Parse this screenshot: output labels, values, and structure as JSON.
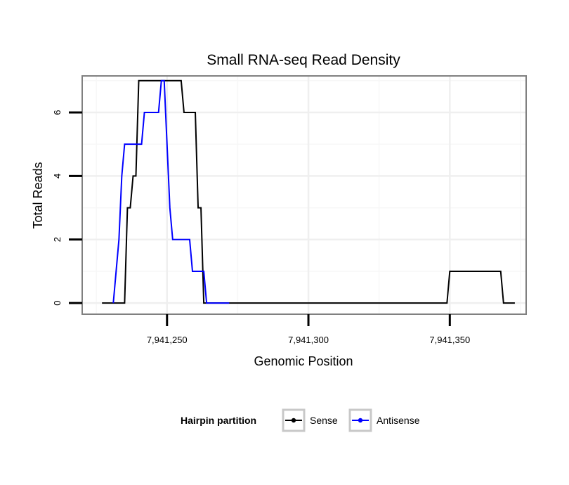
{
  "chart_data": {
    "type": "line",
    "title": "Small RNA-seq Read Density",
    "xlabel": "Genomic Position",
    "ylabel": "Total Reads",
    "xlim": [
      7941220,
      7941377
    ],
    "ylim": [
      -0.35,
      7.15
    ],
    "x_ticks": [
      {
        "value": 7941250,
        "label": "7,941,250"
      },
      {
        "value": 7941300,
        "label": "7,941,300"
      },
      {
        "value": 7941350,
        "label": "7,941,350"
      }
    ],
    "y_ticks": [
      {
        "value": 0,
        "label": "0"
      },
      {
        "value": 2,
        "label": "2"
      },
      {
        "value": 4,
        "label": "4"
      },
      {
        "value": 6,
        "label": "6"
      }
    ],
    "grid": true,
    "legend": {
      "title": "Hairpin partition",
      "position": "bottom",
      "entries": [
        {
          "name": "Sense",
          "color": "#000000"
        },
        {
          "name": "Antisense",
          "color": "#0000ff"
        }
      ]
    },
    "series": [
      {
        "name": "Sense",
        "color": "#000000",
        "points": [
          [
            7941227,
            0
          ],
          [
            7941235,
            0
          ],
          [
            7941236,
            3
          ],
          [
            7941237,
            3
          ],
          [
            7941238,
            4
          ],
          [
            7941239,
            4
          ],
          [
            7941240,
            7
          ],
          [
            7941255,
            7
          ],
          [
            7941256,
            6
          ],
          [
            7941260,
            6
          ],
          [
            7941261,
            3
          ],
          [
            7941262,
            3
          ],
          [
            7941263,
            0
          ],
          [
            7941349,
            0
          ],
          [
            7941350,
            1
          ],
          [
            7941368,
            1
          ],
          [
            7941369,
            0
          ],
          [
            7941373,
            0
          ]
        ]
      },
      {
        "name": "Antisense",
        "color": "#0000ff",
        "points": [
          [
            7941231,
            0
          ],
          [
            7941233,
            2
          ],
          [
            7941234,
            4
          ],
          [
            7941235,
            5
          ],
          [
            7941241,
            5
          ],
          [
            7941242,
            6
          ],
          [
            7941247,
            6
          ],
          [
            7941248,
            7
          ],
          [
            7941249,
            7
          ],
          [
            7941250,
            5
          ],
          [
            7941251,
            3
          ],
          [
            7941252,
            2
          ],
          [
            7941258,
            2
          ],
          [
            7941259,
            1
          ],
          [
            7941263,
            1
          ],
          [
            7941264,
            0
          ],
          [
            7941272,
            0
          ]
        ]
      }
    ]
  }
}
